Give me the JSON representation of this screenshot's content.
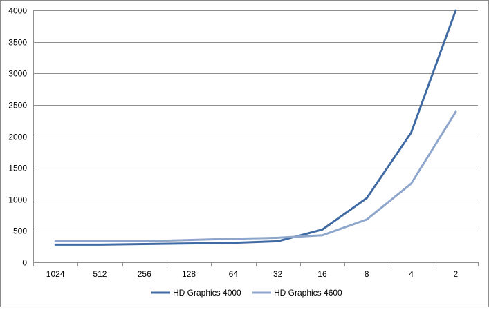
{
  "chart_data": {
    "type": "line",
    "categories": [
      "1024",
      "512",
      "256",
      "128",
      "64",
      "32",
      "16",
      "8",
      "4",
      "2"
    ],
    "series": [
      {
        "name": "HD Graphics 4000",
        "color": "#3f6aa3",
        "values": [
          280,
          280,
          290,
          300,
          310,
          335,
          520,
          1020,
          2060,
          4000
        ]
      },
      {
        "name": "HD Graphics 4600",
        "color": "#8ea6cb",
        "values": [
          335,
          335,
          335,
          355,
          375,
          390,
          430,
          680,
          1250,
          2390
        ]
      }
    ],
    "yticks": [
      "0",
      "500",
      "1000",
      "1500",
      "2000",
      "2500",
      "3000",
      "3500",
      "4000"
    ],
    "ylim": [
      0,
      4000
    ],
    "grid": true,
    "legend_position": "bottom"
  }
}
